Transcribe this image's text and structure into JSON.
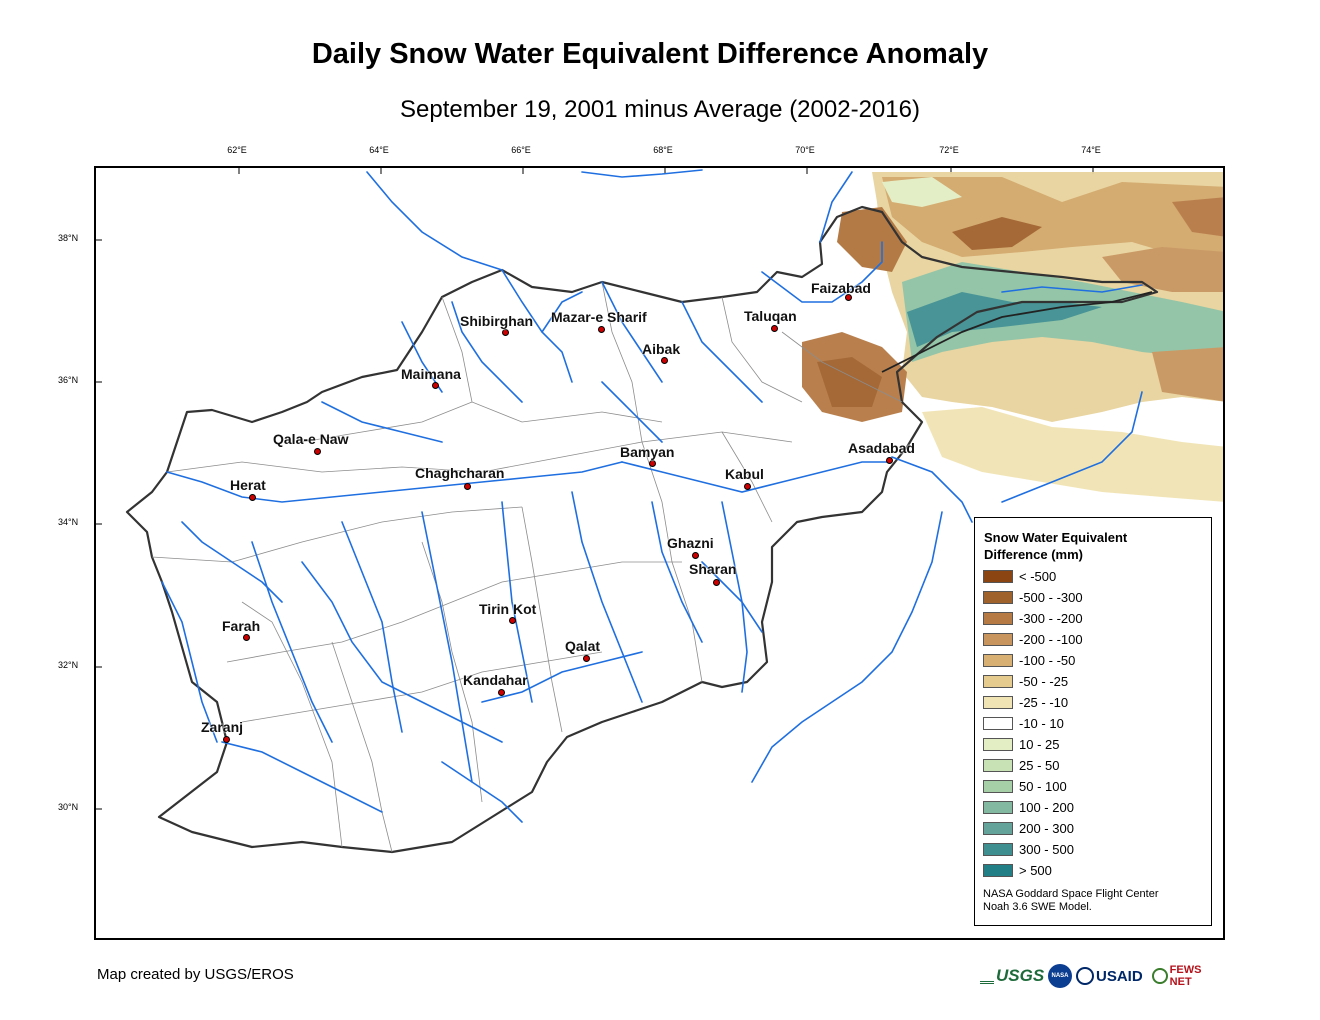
{
  "title": "Daily Snow Water Equivalent Difference Anomaly",
  "subtitle": "September 19, 2001 minus Average (2002-2016)",
  "longitude_ticks": [
    "62°E",
    "64°E",
    "66°E",
    "68°E",
    "70°E",
    "72°E",
    "74°E"
  ],
  "latitude_ticks": [
    "38°N",
    "36°N",
    "34°N",
    "32°N",
    "30°N"
  ],
  "cities": [
    {
      "name": "Faizabad"
    },
    {
      "name": "Taluqan"
    },
    {
      "name": "Shibirghan"
    },
    {
      "name": "Mazar-e Sharif"
    },
    {
      "name": "Aibak"
    },
    {
      "name": "Maimana"
    },
    {
      "name": "Qala-e Naw"
    },
    {
      "name": "Asadabad"
    },
    {
      "name": "Bamyan"
    },
    {
      "name": "Herat"
    },
    {
      "name": "Chaghcharan"
    },
    {
      "name": "Kabul"
    },
    {
      "name": "Ghazni"
    },
    {
      "name": "Sharan"
    },
    {
      "name": "Tirin Kot"
    },
    {
      "name": "Farah"
    },
    {
      "name": "Qalat"
    },
    {
      "name": "Kandahar"
    },
    {
      "name": "Zaranj"
    }
  ],
  "legend": {
    "title_line1": "Snow Water Equivalent",
    "title_line2": "Difference (mm)",
    "classes": [
      {
        "label": "< -500",
        "color": "#8b4513"
      },
      {
        "label": "-500 - -300",
        "color": "#a0622d"
      },
      {
        "label": "-300 - -200",
        "color": "#b67a45"
      },
      {
        "label": "-200 - -100",
        "color": "#c8955e"
      },
      {
        "label": "-100 - -50",
        "color": "#d8b074"
      },
      {
        "label": "-50 - -25",
        "color": "#e6cb8f"
      },
      {
        "label": "-25 - -10",
        "color": "#f1e4b4"
      },
      {
        "label": "-10 - 10",
        "color": "#ffffff"
      },
      {
        "label": "10 - 25",
        "color": "#e3eec4"
      },
      {
        "label": "25 - 50",
        "color": "#c8e2b6"
      },
      {
        "label": "50 - 100",
        "color": "#a6cfa7"
      },
      {
        "label": "100 - 200",
        "color": "#82b9a0"
      },
      {
        "label": "200 - 300",
        "color": "#63a39a"
      },
      {
        "label": "300 - 500",
        "color": "#3f8f91"
      },
      {
        "label": "> 500",
        "color": "#237f86"
      }
    ],
    "credit_line1": "NASA Goddard Space Flight Center",
    "credit_line2": "Noah 3.6 SWE Model."
  },
  "footer_credit": "Map created by USGS/EROS",
  "logos": [
    "USGS",
    "NASA",
    "USAID",
    "FEWS NET"
  ],
  "colors": {
    "river": "#1f6fe0",
    "border": "#333333",
    "basin": "#8c8c8c",
    "city": "#cc0000"
  }
}
